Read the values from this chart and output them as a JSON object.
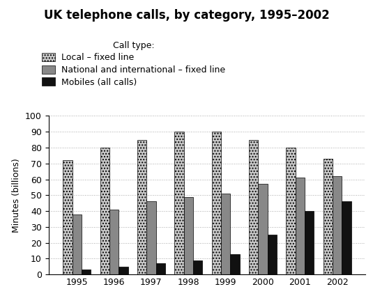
{
  "title": "UK telephone calls, by category, 1995–2002",
  "ylabel": "Minutes (billions)",
  "years": [
    1995,
    1996,
    1997,
    1998,
    1999,
    2000,
    2001,
    2002
  ],
  "local_fixed": [
    72,
    80,
    85,
    90,
    90,
    85,
    80,
    73
  ],
  "national_fixed": [
    38,
    41,
    46,
    49,
    51,
    57,
    61,
    62
  ],
  "mobiles": [
    3,
    5,
    7,
    9,
    13,
    25,
    40,
    46
  ],
  "ylim": [
    0,
    100
  ],
  "yticks": [
    0,
    10,
    20,
    30,
    40,
    50,
    60,
    70,
    80,
    90,
    100
  ],
  "legend_labels": [
    "Local – fixed line",
    "National and international – fixed line",
    "Mobiles (all calls)"
  ],
  "legend_title": "Call type:",
  "bar_width": 0.25,
  "title_fontsize": 12,
  "legend_fontsize": 9,
  "axis_fontsize": 9
}
